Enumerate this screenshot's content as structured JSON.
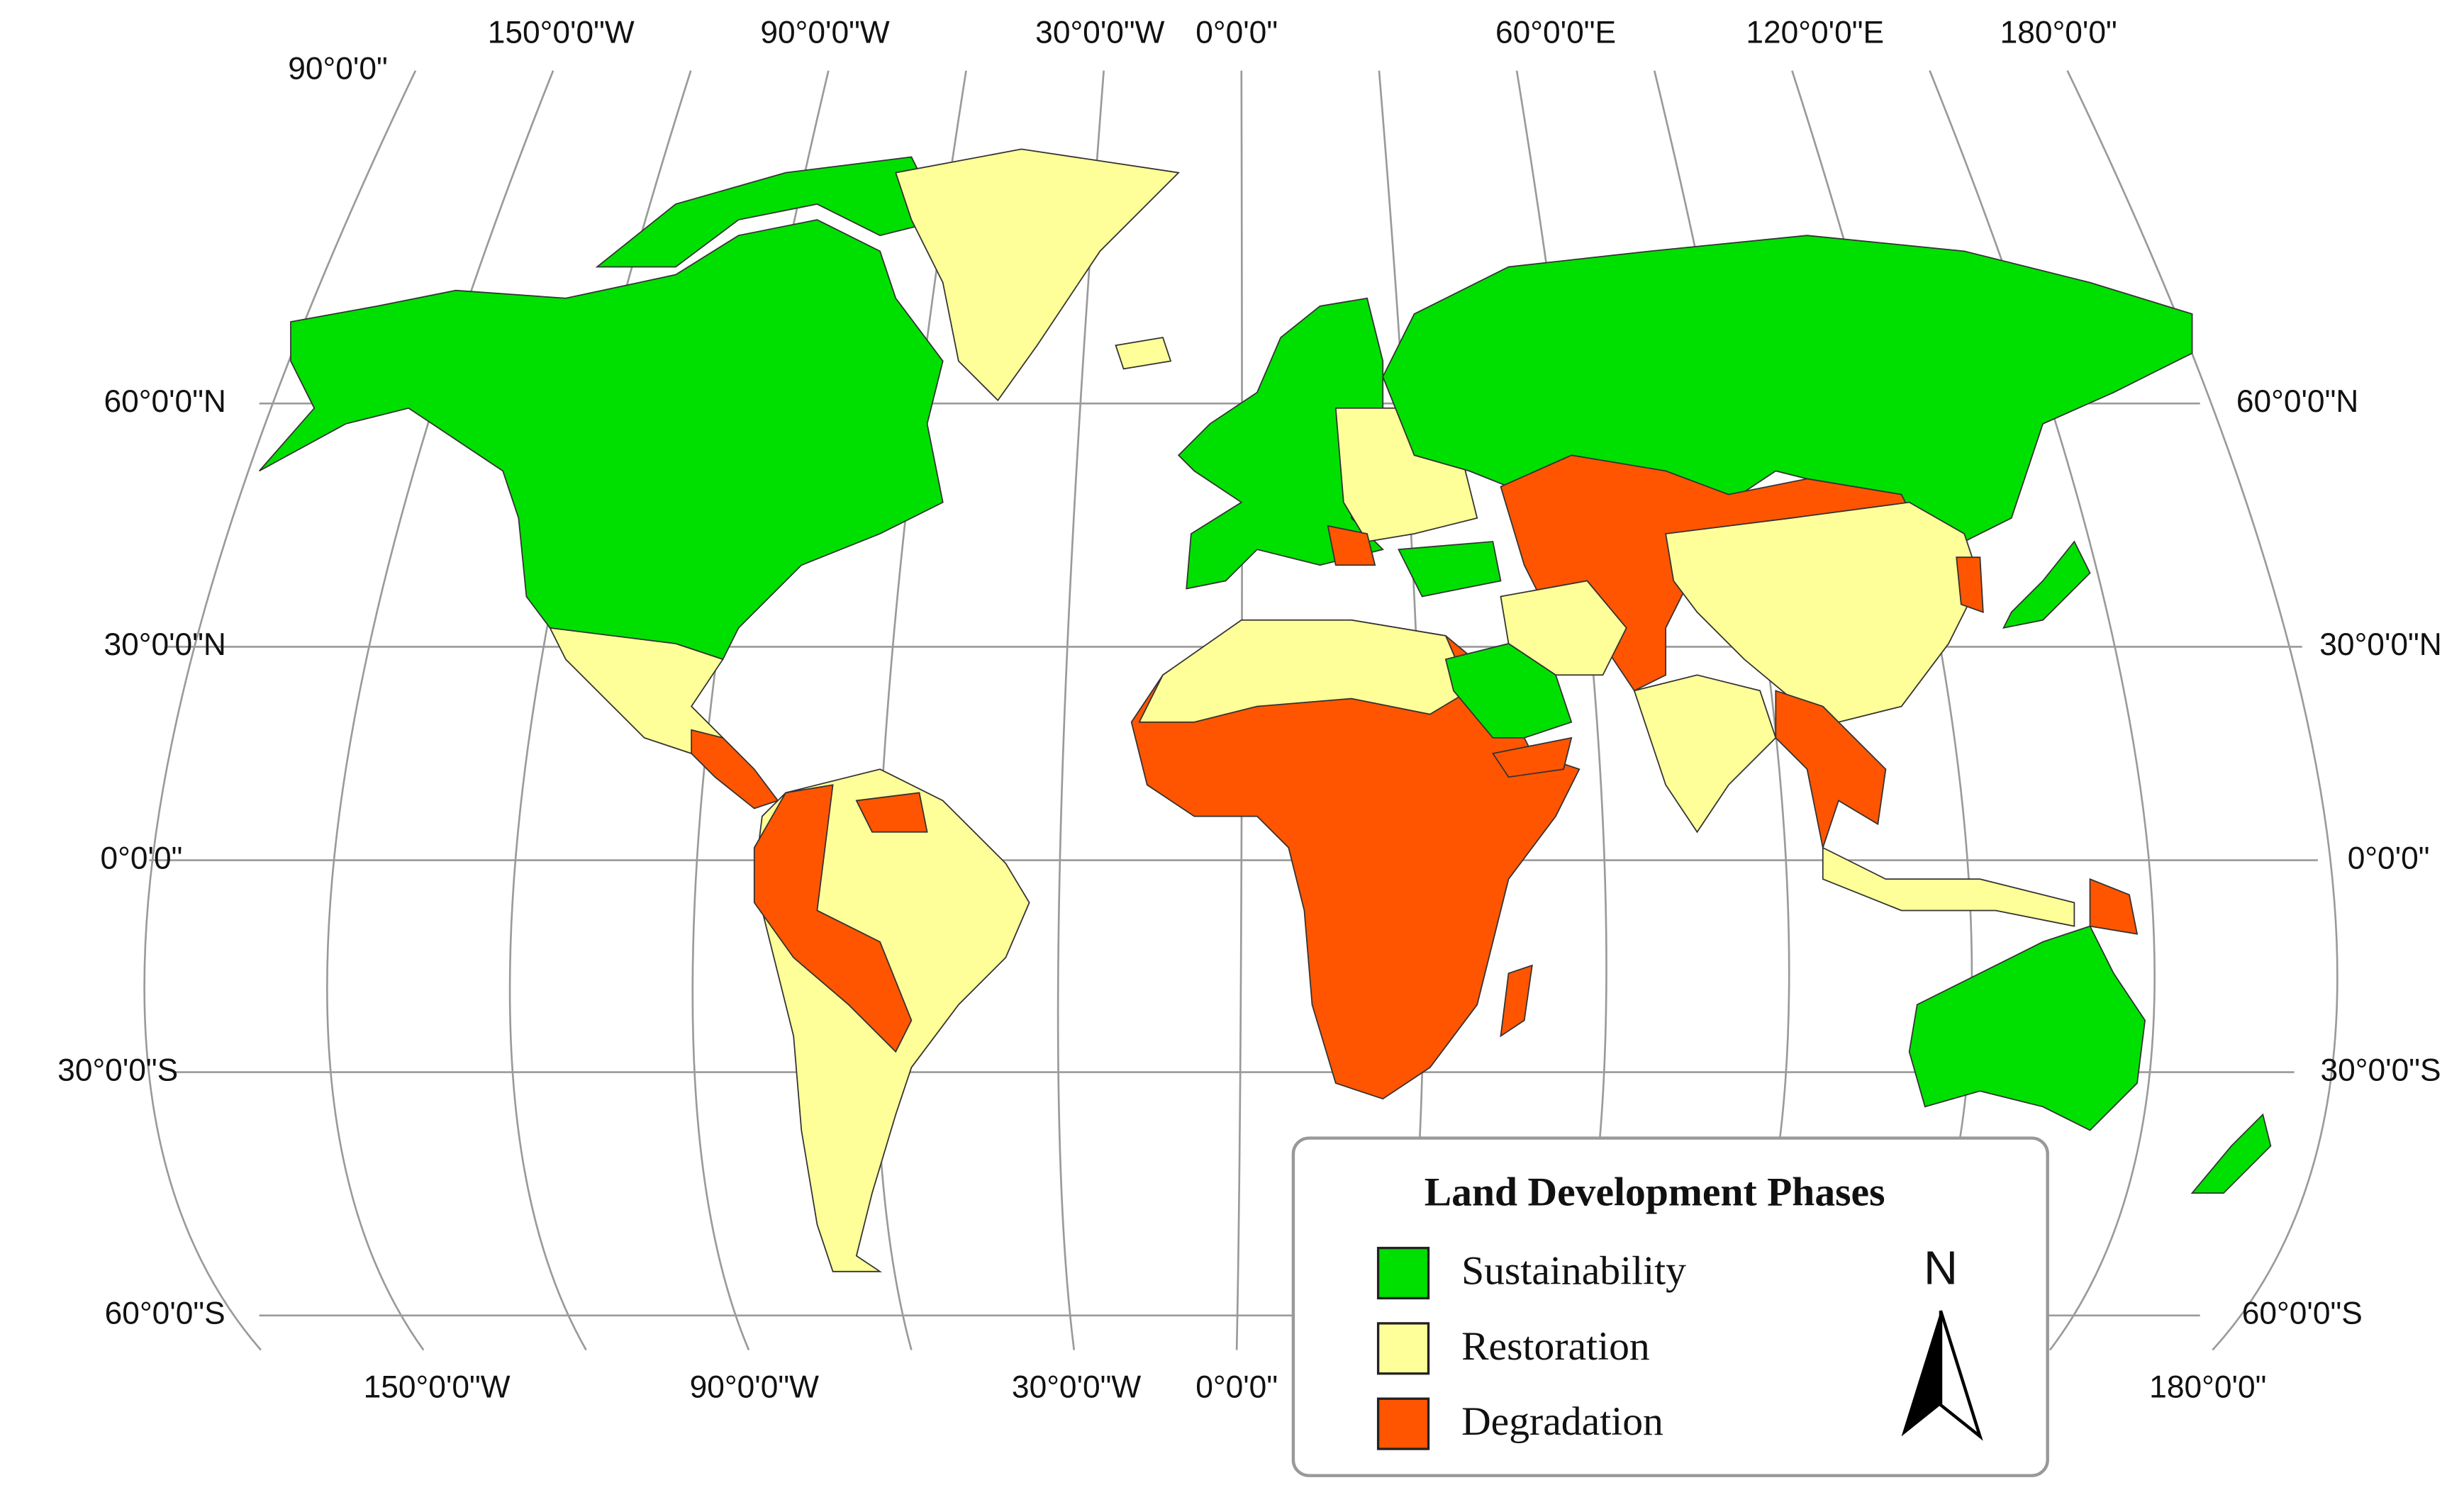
{
  "map": {
    "top_labels": [
      "90°0'0\"",
      "150°0'0\"W",
      "90°0'0\"W",
      "30°0'0\"W",
      "0°0'0\"",
      "60°0'0\"E",
      "120°0'0\"E",
      "180°0'0\""
    ],
    "bottom_labels": [
      "150°0'0\"W",
      "90°0'0\"W",
      "30°0'0\"W",
      "0°0'0\"",
      "180°0'0\""
    ],
    "left_labels": [
      "60°0'0\"N",
      "30°0'0\"N",
      "0°0'0\"",
      "30°0'0\"S",
      "60°0'0\"S"
    ],
    "right_labels": [
      "60°0'0\"N",
      "30°0'0\"N",
      "0°0'0\"",
      "30°0'0\"S",
      "60°0'0\"S"
    ],
    "legend": {
      "title": "Land Development Phases",
      "items": [
        {
          "label": "Sustainability",
          "color": "#00e000"
        },
        {
          "label": "Restoration",
          "color": "#ffff99"
        },
        {
          "label": "Degradation",
          "color": "#ff5500"
        }
      ]
    },
    "north": "N"
  }
}
